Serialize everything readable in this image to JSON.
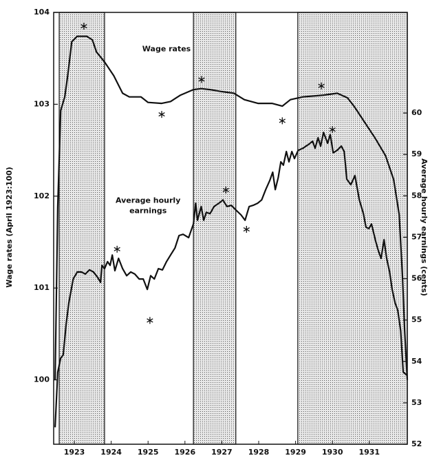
{
  "chart_data": {
    "type": "line",
    "ylabel": "Wage rates (April 1923:100)",
    "y2label": "Average hourly earnings (cents)",
    "xlim": [
      1922.94,
      1932.53
    ],
    "xticks": [
      {
        "value": 1923.5,
        "label": "1923"
      },
      {
        "value": 1924.5,
        "label": "1924"
      },
      {
        "value": 1925.5,
        "label": "1925"
      },
      {
        "value": 1926.5,
        "label": "1926"
      },
      {
        "value": 1927.5,
        "label": "1927"
      },
      {
        "value": 1928.5,
        "label": "1928"
      },
      {
        "value": 1929.5,
        "label": "1929"
      },
      {
        "value": 1930.5,
        "label": "1930"
      },
      {
        "value": 1931.5,
        "label": "1931"
      }
    ],
    "ylim": [
      99.3,
      104
    ],
    "yticks": [
      100,
      101,
      102,
      103,
      104
    ],
    "y2lim": [
      52,
      62.43
    ],
    "y2ticks": [
      52,
      53,
      54,
      55,
      56,
      57,
      58,
      59,
      60
    ],
    "shaded_periods": [
      [
        1923.09,
        1924.32
      ],
      [
        1926.73,
        1927.88
      ],
      [
        1929.56,
        1932.53
      ]
    ],
    "annotations": [
      {
        "text": "Wage rates",
        "x": 1926.0,
        "y": 103.6
      },
      {
        "text": "Average hourly earnings",
        "x": 1925.5,
        "y": 101.95
      }
    ],
    "series": [
      {
        "name": "Wage rates",
        "axis": "y",
        "color": "#111111",
        "x": [
          1922.98,
          1923.05,
          1923.13,
          1923.24,
          1923.32,
          1923.43,
          1923.58,
          1923.84,
          1923.99,
          1924.1,
          1924.32,
          1924.57,
          1924.81,
          1924.99,
          1925.31,
          1925.5,
          1925.87,
          1926.11,
          1926.38,
          1926.73,
          1926.94,
          1927.18,
          1927.46,
          1927.83,
          1928.11,
          1928.48,
          1928.86,
          1929.14,
          1929.36,
          1929.7,
          1930.26,
          1930.63,
          1930.91,
          1931.1,
          1931.38,
          1931.66,
          1931.94,
          1932.16,
          1932.31,
          1932.4,
          1932.46,
          1932.53
        ],
        "values": [
          100.0,
          101.88,
          102.93,
          103.08,
          103.31,
          103.68,
          103.74,
          103.74,
          103.7,
          103.57,
          103.46,
          103.31,
          103.12,
          103.08,
          103.08,
          103.02,
          103.01,
          103.03,
          103.1,
          103.16,
          103.17,
          103.16,
          103.14,
          103.12,
          103.05,
          103.01,
          103.01,
          102.98,
          103.05,
          103.08,
          103.1,
          103.12,
          103.07,
          102.97,
          102.8,
          102.63,
          102.44,
          102.18,
          101.8,
          101.13,
          100.53,
          100.0
        ],
        "markers": {
          "x": [
            1923.76,
            1925.87,
            1926.95,
            1929.14,
            1930.2
          ],
          "values": [
            103.85,
            102.89,
            103.27,
            102.82,
            103.2
          ]
        }
      },
      {
        "name": "Average hourly earnings",
        "axis": "y2",
        "color": "#111111",
        "x": [
          1922.98,
          1923.05,
          1923.13,
          1923.2,
          1923.28,
          1923.35,
          1923.47,
          1923.58,
          1923.69,
          1923.8,
          1923.91,
          1924.02,
          1924.14,
          1924.21,
          1924.25,
          1924.32,
          1924.4,
          1924.47,
          1924.53,
          1924.6,
          1924.7,
          1924.81,
          1924.92,
          1925.03,
          1925.14,
          1925.26,
          1925.37,
          1925.48,
          1925.57,
          1925.67,
          1925.78,
          1925.89,
          1926.0,
          1926.11,
          1926.23,
          1926.34,
          1926.45,
          1926.6,
          1926.73,
          1926.79,
          1926.84,
          1926.94,
          1927.01,
          1927.08,
          1927.18,
          1927.29,
          1927.42,
          1927.53,
          1927.64,
          1927.76,
          1927.89,
          1928.02,
          1928.13,
          1928.24,
          1928.35,
          1928.47,
          1928.58,
          1928.69,
          1928.8,
          1928.88,
          1928.95,
          1929.03,
          1929.1,
          1929.17,
          1929.25,
          1929.32,
          1929.4,
          1929.47,
          1929.57,
          1929.7,
          1929.85,
          1929.96,
          1930.03,
          1930.11,
          1930.18,
          1930.26,
          1930.37,
          1930.44,
          1930.52,
          1930.63,
          1930.74,
          1930.82,
          1930.89,
          1931.0,
          1931.11,
          1931.23,
          1931.34,
          1931.41,
          1931.49,
          1931.56,
          1931.67,
          1931.75,
          1931.82,
          1931.9,
          1931.97,
          1932.05,
          1932.12,
          1932.2,
          1932.27,
          1932.35,
          1932.42,
          1932.53
        ],
        "values": [
          52.41,
          53.74,
          54.08,
          54.16,
          54.91,
          55.41,
          55.99,
          56.16,
          56.16,
          56.11,
          56.21,
          56.16,
          56.02,
          55.91,
          56.32,
          56.24,
          56.41,
          56.32,
          56.57,
          56.19,
          56.49,
          56.24,
          56.07,
          56.16,
          56.11,
          55.99,
          55.99,
          55.74,
          56.07,
          55.99,
          56.24,
          56.21,
          56.41,
          56.57,
          56.74,
          57.04,
          57.07,
          56.99,
          57.32,
          57.82,
          57.41,
          57.74,
          57.41,
          57.6,
          57.57,
          57.74,
          57.82,
          57.9,
          57.74,
          57.77,
          57.65,
          57.54,
          57.41,
          57.74,
          57.77,
          57.82,
          57.9,
          58.15,
          58.37,
          58.57,
          58.15,
          58.44,
          58.82,
          58.74,
          59.07,
          58.82,
          59.07,
          58.9,
          59.1,
          59.15,
          59.24,
          59.32,
          59.15,
          59.4,
          59.2,
          59.53,
          59.27,
          59.48,
          59.04,
          59.1,
          59.2,
          59.07,
          58.4,
          58.27,
          58.49,
          57.9,
          57.57,
          57.24,
          57.21,
          57.32,
          56.91,
          56.66,
          56.49,
          56.94,
          56.49,
          56.16,
          55.74,
          55.41,
          55.24,
          54.74,
          53.74,
          53.66
        ],
        "markers": {
          "x": [
            1924.66,
            1925.55,
            1927.61,
            1928.17,
            1930.5
          ],
          "values": [
            56.71,
            54.99,
            58.14,
            57.19,
            59.6
          ]
        }
      }
    ]
  }
}
